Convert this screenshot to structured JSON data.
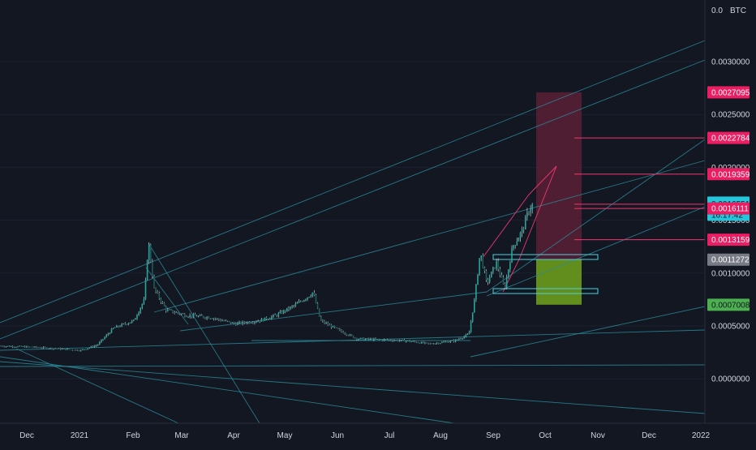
{
  "chart_data": {
    "type": "candlestick",
    "title": "",
    "xlabel": "",
    "ylabel": "",
    "currency_label": "BTC",
    "top_tick": "0.0",
    "x_ticks": [
      "Dec",
      "2021",
      "Feb",
      "Mar",
      "Apr",
      "May",
      "Jun",
      "Jul",
      "Aug",
      "Sep",
      "Oct",
      "Nov",
      "Dec",
      "2022"
    ],
    "y_ticks": [
      "0.0030000",
      "0.0025000",
      "0.0020000",
      "0.0015000",
      "0.0010000",
      "0.0005000",
      "0.0000000"
    ],
    "ylim": [
      -0.00065,
      0.00365
    ],
    "price_levels": {
      "stop": "0.0027095",
      "target_1": "0.0022784",
      "target_2": "0.0019359",
      "current": "0.0016551",
      "countdown": "16:17:42",
      "target_3": "0.0016111",
      "target_4": "0.0013159",
      "entry": "0.0011272",
      "support": "0.0007008"
    },
    "watermark": "",
    "colors": {
      "background": "#131722",
      "up": "#26a69a",
      "up_wick": "#c8ccd3",
      "down": "#1b5e5a",
      "trendline": "#2a8a96",
      "target_line": "#f23670",
      "risk_zone": "#5c2035",
      "reward_zone": "#6b9b1e",
      "current_badge": "#26c6da",
      "entry_badge": "#787b86",
      "support_badge": "#4caf50",
      "level_badge": "#e91e63"
    }
  }
}
